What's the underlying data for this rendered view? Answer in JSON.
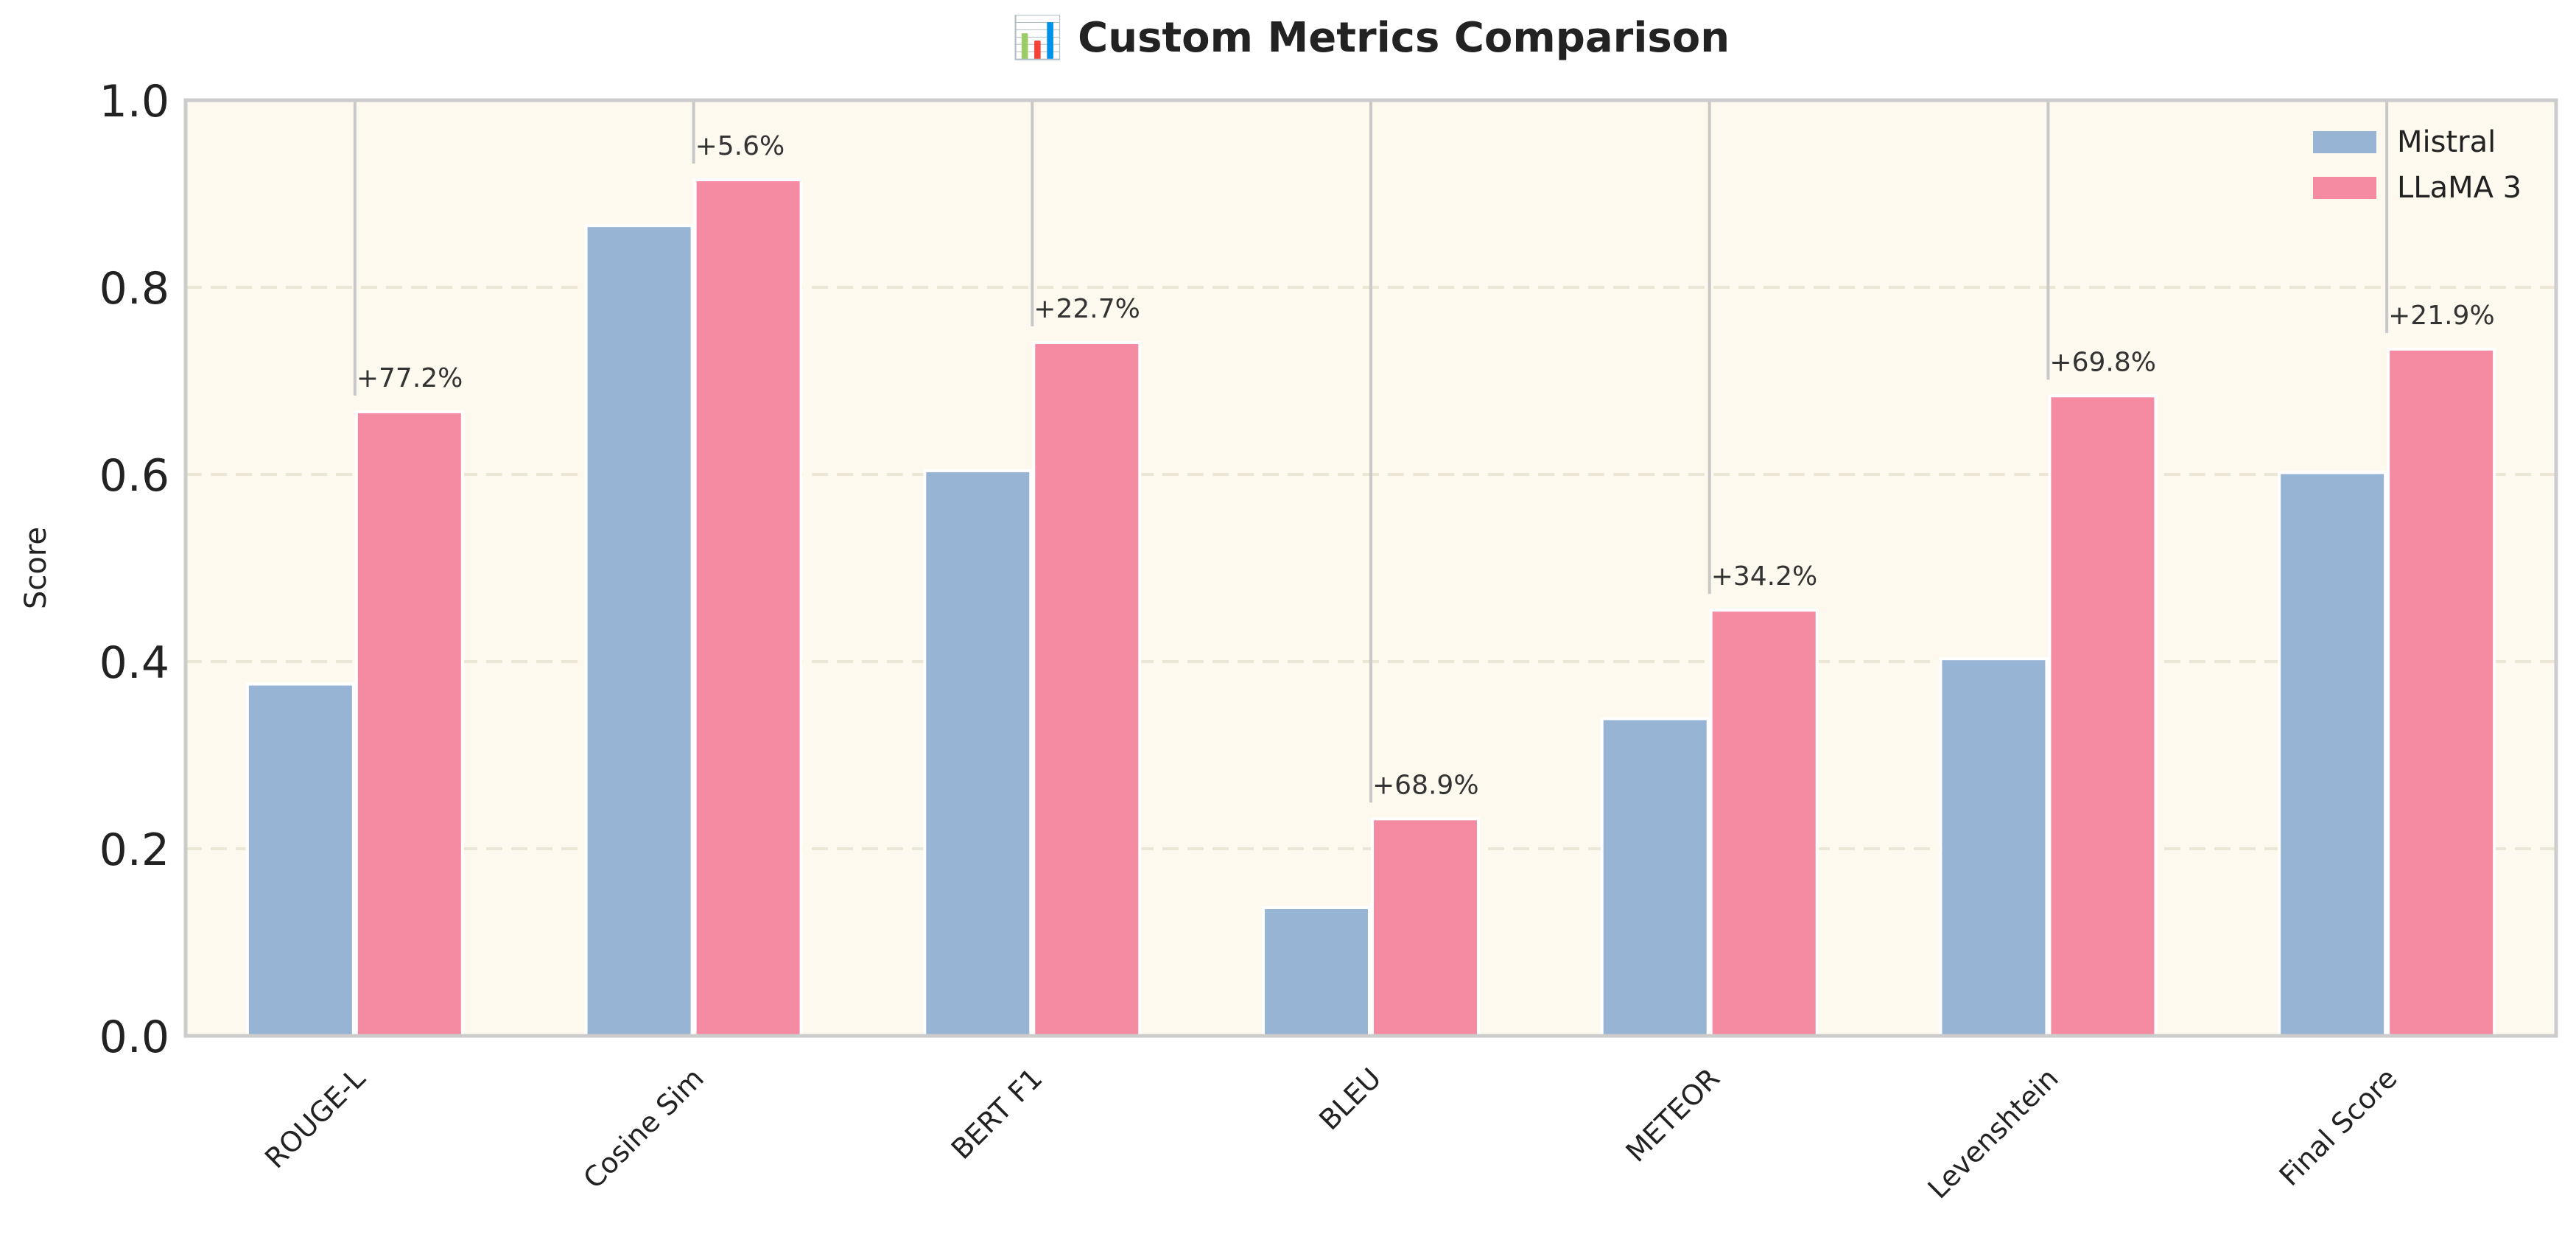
{
  "chart_data": {
    "type": "bar",
    "title": "📊 Custom Metrics Comparison",
    "xlabel": "",
    "ylabel": "Score",
    "ylim": [
      0,
      1.0
    ],
    "yticks": [
      "0.0",
      "0.2",
      "0.4",
      "0.6",
      "0.8",
      "1.0"
    ],
    "grid": true,
    "legend_position": "top-right",
    "categories": [
      "ROUGE-L",
      "Cosine Sim",
      "BERT F1",
      "BLEU",
      "METEOR",
      "Levenshtein",
      "Final Score"
    ],
    "series": [
      {
        "name": "Mistral",
        "color": "#98b4d4",
        "values": [
          0.376,
          0.866,
          0.604,
          0.137,
          0.339,
          0.403,
          0.602
        ]
      },
      {
        "name": "LLaMA 3",
        "color": "#f48ba3",
        "values": [
          0.667,
          0.915,
          0.741,
          0.232,
          0.455,
          0.684,
          0.734
        ]
      }
    ],
    "annotations": [
      "+77.2%",
      "+5.6%",
      "+22.7%",
      "+68.9%",
      "+34.2%",
      "+69.8%",
      "+21.9%"
    ],
    "plot_background": "#fdf9ee",
    "frame_color": "#cccccc"
  }
}
